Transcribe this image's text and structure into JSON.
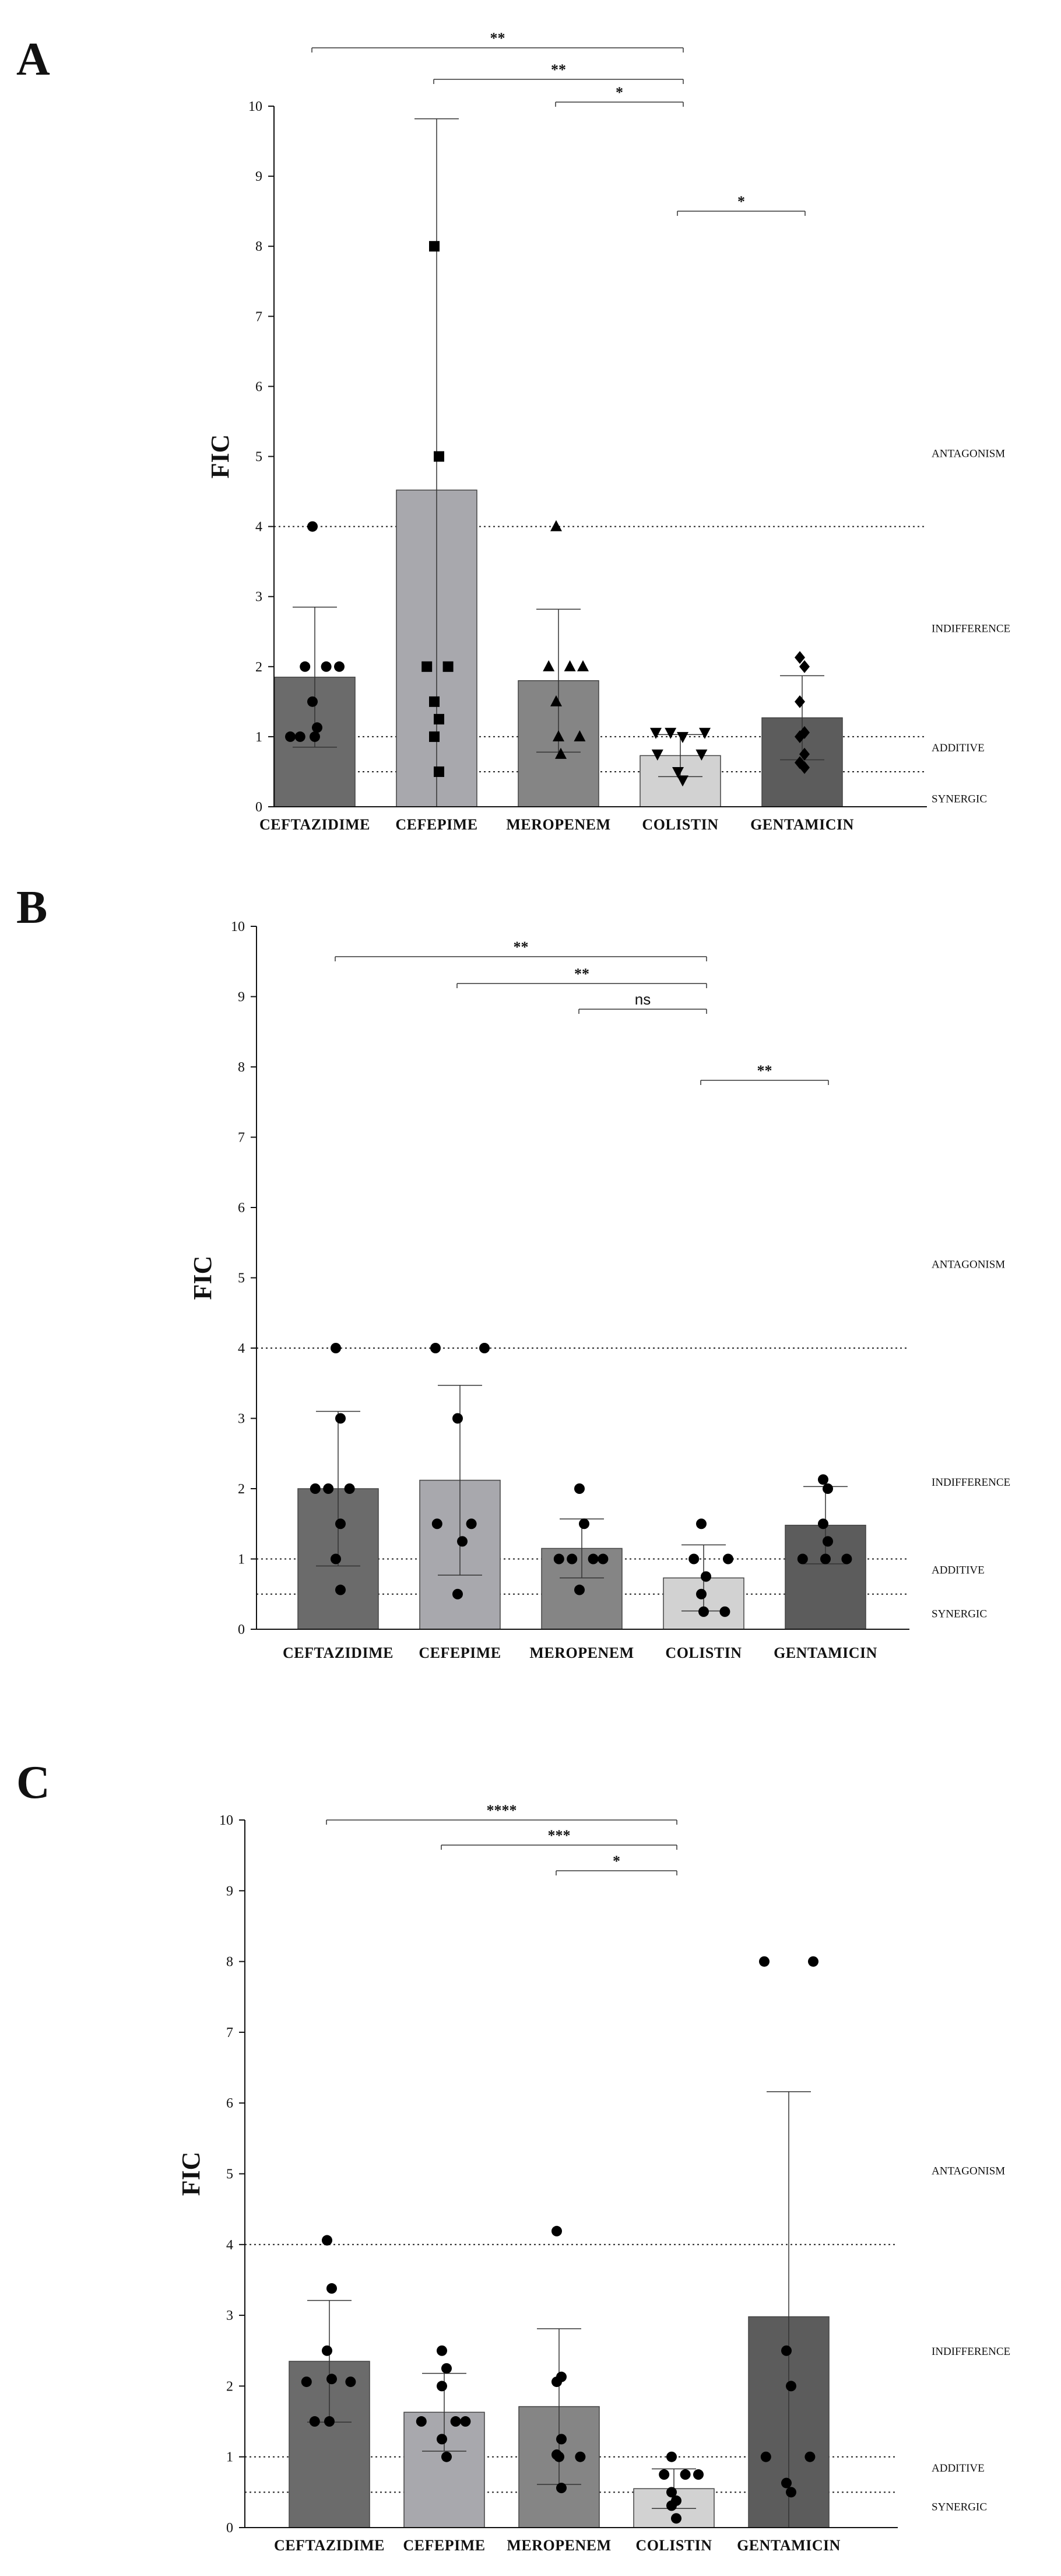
{
  "chart_data": [
    {
      "type": "bar",
      "panel": "A",
      "ylabel": "FIC",
      "ylim": [
        0,
        10
      ],
      "yticks": [
        0,
        1,
        2,
        3,
        4,
        5,
        6,
        7,
        8,
        9,
        10
      ],
      "categories": [
        "CEFTAZIDIME",
        "CEFEPIME",
        "MEROPENEM",
        "COLISTIN",
        "GENTAMICIN"
      ],
      "values": [
        1.85,
        4.52,
        1.8,
        0.73,
        1.27
      ],
      "sd": [
        1.0,
        5.3,
        1.02,
        0.3,
        0.6
      ],
      "bar_colors": [
        "#6b6b6b",
        "#a8a8ad",
        "#858585",
        "#d2d2d2",
        "#5c5c5c"
      ],
      "points": [
        [
          1,
          2,
          2,
          2,
          1.5,
          1.13,
          1,
          1,
          4
        ],
        [
          8,
          5,
          2,
          2,
          1.5,
          1.25,
          1,
          0.5
        ],
        [
          4,
          2,
          2,
          2,
          1.5,
          1,
          1,
          0.75
        ],
        [
          1.06,
          1.06,
          1.06,
          1,
          0.75,
          0.75,
          0.5,
          0.38
        ],
        [
          2.13,
          2,
          1.5,
          1.06,
          1,
          0.75,
          0.63,
          0.56
        ]
      ],
      "markers": [
        "circle",
        "square",
        "triangle",
        "triangle-down",
        "diamond"
      ],
      "thresholds": [
        {
          "label": "SYNERGIC",
          "value": 0.5
        },
        {
          "label": "ADDITIVE",
          "value": 1
        },
        {
          "label": "INDIFFERENCE",
          "value": 2.5
        },
        {
          "label": "ANTAGONISM",
          "value": 4
        }
      ],
      "zone_labels": [
        {
          "label": "ANTAGONISM",
          "at": 5.05
        },
        {
          "label": "INDIFFERENCE",
          "at": 2.55
        },
        {
          "label": "ADDITIVE",
          "at": 0.85
        },
        {
          "label": "SYNERGIC",
          "at": 0.12
        }
      ],
      "comparisons": [
        {
          "from": 0,
          "to": 3,
          "label": "**"
        },
        {
          "from": 1,
          "to": 3,
          "label": "**"
        },
        {
          "from": 2,
          "to": 3,
          "label": "*"
        },
        {
          "from": 3,
          "to": 4,
          "label": "*"
        }
      ]
    },
    {
      "type": "bar",
      "panel": "B",
      "ylabel": "FIC",
      "ylim": [
        0,
        10
      ],
      "yticks": [
        0,
        1,
        2,
        3,
        4,
        5,
        6,
        7,
        8,
        9,
        10
      ],
      "categories": [
        "CEFTAZIDIME",
        "CEFEPIME",
        "MEROPENEM",
        "COLISTIN",
        "GENTAMICIN"
      ],
      "values": [
        2.0,
        2.12,
        1.15,
        0.73,
        1.48
      ],
      "sd": [
        1.1,
        1.35,
        0.42,
        0.47,
        0.55
      ],
      "bar_colors": [
        "#6b6b6b",
        "#a8a8ad",
        "#858585",
        "#d2d2d2",
        "#5c5c5c"
      ],
      "points": [
        [
          4,
          3,
          2,
          2,
          2,
          1.5,
          1,
          0.56
        ],
        [
          4,
          4,
          3,
          1.5,
          1.5,
          1.25,
          0.5
        ],
        [
          2,
          1.5,
          1,
          1,
          1,
          1,
          0.56
        ],
        [
          1.5,
          1,
          1,
          0.75,
          0.5,
          0.25,
          0.25
        ],
        [
          2.13,
          2,
          1.5,
          1.25,
          1,
          1,
          1
        ]
      ],
      "markers": [
        "circle",
        "circle",
        "circle",
        "circle",
        "circle"
      ],
      "thresholds": [
        {
          "label": "SYNERGIC",
          "value": 0.5
        },
        {
          "label": "ADDITIVE",
          "value": 1
        },
        {
          "label": "ANTAGONISM",
          "value": 4
        }
      ],
      "zone_labels": [
        {
          "label": "ANTAGONISM",
          "at": 5.2
        },
        {
          "label": "INDIFFERENCE",
          "at": 2.1
        },
        {
          "label": "ADDITIVE",
          "at": 0.85
        },
        {
          "label": "SYNERGIC",
          "at": 0.23
        }
      ],
      "comparisons": [
        {
          "from": 0,
          "to": 3,
          "label": "**"
        },
        {
          "from": 1,
          "to": 3,
          "label": "**"
        },
        {
          "from": 2,
          "to": 3,
          "label": "ns"
        },
        {
          "from": 3,
          "to": 4,
          "label": "**"
        }
      ]
    },
    {
      "type": "bar",
      "panel": "C",
      "ylabel": "FIC",
      "ylim": [
        0,
        10
      ],
      "yticks": [
        0,
        1,
        2,
        3,
        4,
        5,
        6,
        7,
        8,
        9,
        10
      ],
      "categories": [
        "CEFTAZIDIME",
        "CEFEPIME",
        "MEROPENEM",
        "COLISTIN",
        "GENTAMICIN"
      ],
      "values": [
        2.35,
        1.63,
        1.71,
        0.55,
        2.98
      ],
      "sd": [
        0.86,
        0.55,
        1.1,
        0.28,
        3.18
      ],
      "bar_colors": [
        "#6b6b6b",
        "#a8a8ad",
        "#858585",
        "#d2d2d2",
        "#5c5c5c"
      ],
      "points": [
        [
          4.06,
          3.38,
          2.5,
          2.1,
          2.06,
          2.06,
          1.5,
          1.5
        ],
        [
          2.5,
          2.25,
          2,
          1.5,
          1.5,
          1.5,
          1.25,
          1
        ],
        [
          4.19,
          2.13,
          2.06,
          1.25,
          1.03,
          1,
          1,
          0.56
        ],
        [
          1,
          0.75,
          0.75,
          0.75,
          0.5,
          0.38,
          0.31,
          0.13
        ],
        [
          8,
          8,
          2.5,
          2,
          1,
          1,
          0.63,
          0.5
        ]
      ],
      "markers": [
        "circle",
        "circle",
        "circle",
        "circle",
        "circle"
      ],
      "thresholds": [
        {
          "label": "SYNERGIC",
          "value": 0.5
        },
        {
          "label": "ADDITIVE",
          "value": 1
        },
        {
          "label": "ANTAGONISM",
          "value": 4
        }
      ],
      "zone_labels": [
        {
          "label": "ANTAGONISM",
          "at": 5.05
        },
        {
          "label": "INDIFFERENCE",
          "at": 2.5
        },
        {
          "label": "ADDITIVE",
          "at": 0.85
        },
        {
          "label": "SYNERGIC",
          "at": 0.3
        }
      ],
      "comparisons": [
        {
          "from": 0,
          "to": 3,
          "label": "****"
        },
        {
          "from": 1,
          "to": 3,
          "label": "***"
        },
        {
          "from": 2,
          "to": 3,
          "label": "*"
        }
      ]
    }
  ]
}
